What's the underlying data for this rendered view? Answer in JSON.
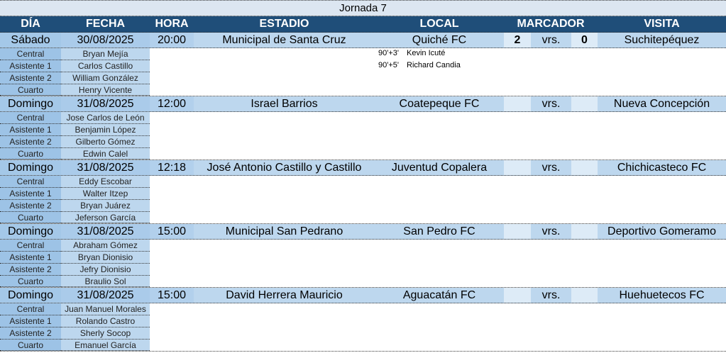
{
  "title": "Jornada 7",
  "headers": {
    "dia": "DÍA",
    "fecha": "FECHA",
    "hora": "HORA",
    "estadio": "ESTADIO",
    "local": "LOCAL",
    "marcador": "MARCADOR",
    "visita": "VISITA"
  },
  "colors": {
    "header": "#1f4e79",
    "match_row": "#bdd7ee",
    "score_cell": "#ddebf7",
    "title_row": "#dce6f1",
    "ref_label": "#9dc3e6"
  },
  "matches": [
    {
      "dia": "Sábado",
      "fecha": "30/08/2025",
      "hora": "20:00",
      "estadio": "Municipal de Santa Cruz",
      "local": "Quiché FC",
      "goles_local": "2",
      "vs": "vrs.",
      "goles_visita": "0",
      "visita": "Suchitepéquez",
      "refs": [
        {
          "role": "Central",
          "name": "Bryan Mejía"
        },
        {
          "role": "Asistente 1",
          "name": "Carlos Castillo"
        },
        {
          "role": "Asistente 2",
          "name": "William González"
        },
        {
          "role": "Cuarto",
          "name": "Henry Vicente"
        }
      ],
      "goals": [
        {
          "min": "90'+3'",
          "player": "Kevin Icuté"
        },
        {
          "min": "90'+5'",
          "player": "Richard Candia"
        }
      ]
    },
    {
      "dia": "Domingo",
      "fecha": "31/08/2025",
      "hora": "12:00",
      "estadio": "Israel Barrios",
      "local": "Coatepeque FC",
      "goles_local": "",
      "vs": "vrs.",
      "goles_visita": "",
      "visita": "Nueva Concepción",
      "refs": [
        {
          "role": "Central",
          "name": "Jose Carlos de León"
        },
        {
          "role": "Asistente 1",
          "name": "Benjamin López"
        },
        {
          "role": "Asistente 2",
          "name": "Gilberto Gómez"
        },
        {
          "role": "Cuarto",
          "name": "Edwin Calel"
        }
      ],
      "goals": []
    },
    {
      "dia": "Domingo",
      "fecha": "31/08/2025",
      "hora": "12:18",
      "estadio": "José Antonio Castillo y Castillo",
      "local": "Juventud Copalera",
      "goles_local": "",
      "vs": "vrs.",
      "goles_visita": "",
      "visita": "Chichicasteco FC",
      "refs": [
        {
          "role": "Central",
          "name": "Eddy Escobar"
        },
        {
          "role": "Asistente 1",
          "name": "Walter Itzep"
        },
        {
          "role": "Asistente 2",
          "name": "Bryan Juárez"
        },
        {
          "role": "Cuarto",
          "name": "Jeferson García"
        }
      ],
      "goals": []
    },
    {
      "dia": "Domingo",
      "fecha": "31/08/2025",
      "hora": "15:00",
      "estadio": "Municipal San Pedrano",
      "local": "San Pedro FC",
      "goles_local": "",
      "vs": "vrs.",
      "goles_visita": "",
      "visita": "Deportivo Gomeramo",
      "refs": [
        {
          "role": "Central",
          "name": "Abraham Gómez"
        },
        {
          "role": "Asistente 1",
          "name": "Bryan Dionisio"
        },
        {
          "role": "Asistente 2",
          "name": "Jefry Dionisio"
        },
        {
          "role": "Cuarto",
          "name": "Braulio Sol"
        }
      ],
      "goals": []
    },
    {
      "dia": "Domingo",
      "fecha": "31/08/2025",
      "hora": "15:00",
      "estadio": "David Herrera Mauricio",
      "local": "Aguacatán FC",
      "goles_local": "",
      "vs": "vrs.",
      "goles_visita": "",
      "visita": "Huehuetecos FC",
      "refs": [
        {
          "role": "Central",
          "name": "Juan Manuel Morales"
        },
        {
          "role": "Asistente 1",
          "name": "Rolando Castro"
        },
        {
          "role": "Asistente 2",
          "name": "Sherly Socop"
        },
        {
          "role": "Cuarto",
          "name": "Emanuel García"
        }
      ],
      "goals": []
    }
  ]
}
